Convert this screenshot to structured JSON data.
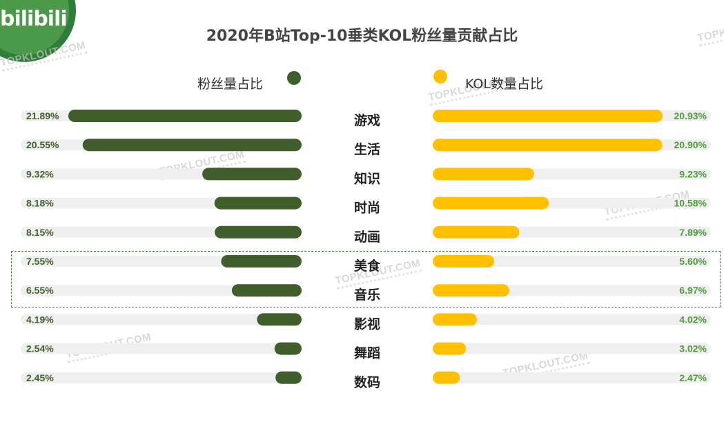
{
  "logo": "bilibili",
  "watermark": "TOPKLOUT.COM",
  "legend": {
    "fans_label": "粉丝量占比",
    "kol_label": "KOL数量占比"
  },
  "colors": {
    "fans": "#3f5e2c",
    "kol": "#ffc000",
    "track": "#efefef",
    "kol_value_text": "#4f9a3c",
    "fans_value_text": "#3f5e2c"
  },
  "chart_data": {
    "type": "bar",
    "title": "2020年B站Top-10垂类KOL粉丝量贡献占比",
    "categories": [
      "游戏",
      "生活",
      "知识",
      "时尚",
      "动画",
      "美食",
      "音乐",
      "影视",
      "舞蹈",
      "数码"
    ],
    "series": [
      {
        "name": "粉丝量占比",
        "values": [
          21.89,
          20.55,
          9.32,
          8.18,
          8.15,
          7.55,
          6.55,
          4.19,
          2.54,
          2.45
        ],
        "labels": [
          "21.89%",
          "20.55%",
          "9.32%",
          "8.18%",
          "8.15%",
          "7.55%",
          "6.55%",
          "4.19%",
          "2.54%",
          "2.45%"
        ]
      },
      {
        "name": "KOL数量占比",
        "values": [
          20.93,
          20.9,
          9.23,
          10.58,
          7.89,
          5.6,
          6.97,
          4.02,
          3.02,
          2.47
        ],
        "labels": [
          "20.93%",
          "20.90%",
          "9.23%",
          "10.58%",
          "7.89%",
          "5.60%",
          "6.97%",
          "4.02%",
          "3.02%",
          "2.47%"
        ]
      }
    ],
    "highlighted_categories": [
      "美食",
      "音乐"
    ]
  }
}
